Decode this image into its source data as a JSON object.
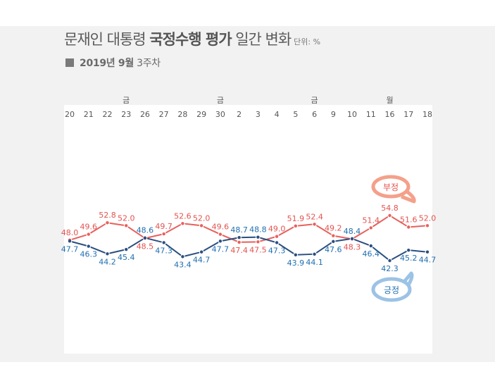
{
  "header": {
    "title_part1": "문재인 대통령 ",
    "title_bold": "국정수행 평가",
    "title_part2": " 일간 변화",
    "unit": "단위: %",
    "subtitle_bold": "2019년 9월",
    "subtitle_rest": " 3주차"
  },
  "legend": {
    "negative_label": "부정",
    "positive_label": "긍정"
  },
  "colors": {
    "negative_line": "#e8605c",
    "negative_label": "#e3534f",
    "negative_bubble": "#f4a08a",
    "positive_line": "#2b4f80",
    "positive_label": "#1f6fb0",
    "positive_bubble": "#9cc3e5",
    "background": "#f2f2f2",
    "plot_background": "#ffffff"
  },
  "chart_data": {
    "type": "line",
    "title": "문재인 대통령 국정수행 평가 일간 변화",
    "subtitle": "2019년 9월 3주차",
    "unit": "%",
    "categories": [
      "20",
      "21",
      "22",
      "23",
      "26",
      "27",
      "28",
      "29",
      "30",
      "2",
      "3",
      "4",
      "5",
      "6",
      "9",
      "10",
      "11",
      "16",
      "17",
      "18"
    ],
    "weekday_markers": [
      {
        "index": 3,
        "label": "금"
      },
      {
        "index": 8,
        "label": "금"
      },
      {
        "index": 13,
        "label": "금"
      },
      {
        "index": 17,
        "label": "월"
      }
    ],
    "series": [
      {
        "name": "부정",
        "values": [
          48.0,
          49.6,
          52.8,
          52.0,
          48.5,
          49.7,
          52.6,
          52.0,
          49.6,
          47.4,
          47.5,
          49.0,
          51.9,
          52.4,
          49.2,
          48.3,
          51.4,
          54.8,
          51.6,
          52.0
        ]
      },
      {
        "name": "긍정",
        "values": [
          47.7,
          46.3,
          44.2,
          45.4,
          48.6,
          47.3,
          43.4,
          44.7,
          47.7,
          48.7,
          48.8,
          47.3,
          43.9,
          44.1,
          47.6,
          48.4,
          46.4,
          42.3,
          45.2,
          44.7
        ]
      }
    ],
    "label_positions": {
      "부정": [
        "above",
        "above",
        "above",
        "above",
        "below",
        "above",
        "above",
        "above",
        "above",
        "below",
        "below",
        "above",
        "above",
        "above",
        "above",
        "below",
        "above",
        "above",
        "above",
        "above"
      ],
      "긍정": [
        "below",
        "below",
        "below",
        "below",
        "above",
        "below",
        "below",
        "below",
        "below",
        "above",
        "above",
        "below",
        "below",
        "below",
        "below",
        "above",
        "below",
        "below",
        "below",
        "below"
      ]
    },
    "xlabel": "",
    "ylabel": "",
    "grid": false,
    "legend_position": "callout bubbles at right"
  }
}
